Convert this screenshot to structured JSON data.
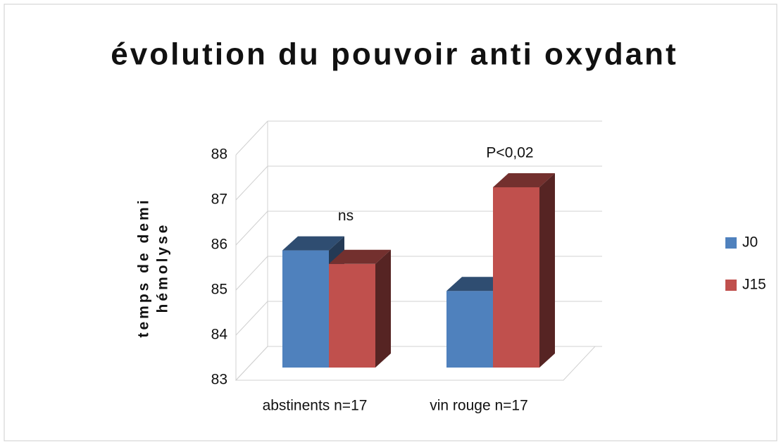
{
  "chart_data": {
    "type": "bar3d",
    "title": "évolution du pouvoir anti oxydant",
    "ylabel": [
      "temps de demi",
      "hémolyse"
    ],
    "categories": [
      "abstinents n=17",
      "vin rouge n=17"
    ],
    "series": [
      {
        "name": "J0",
        "color": "#4f81bd",
        "values": [
          85.6,
          84.7
        ]
      },
      {
        "name": "J15",
        "color": "#c0504d",
        "values": [
          85.3,
          87.0
        ]
      }
    ],
    "annotations": [
      "ns",
      "P<0,02"
    ],
    "ylim": [
      83,
      88
    ],
    "yticks": [
      83,
      84,
      85,
      86,
      87,
      88
    ],
    "grid": true,
    "legend": "right"
  }
}
